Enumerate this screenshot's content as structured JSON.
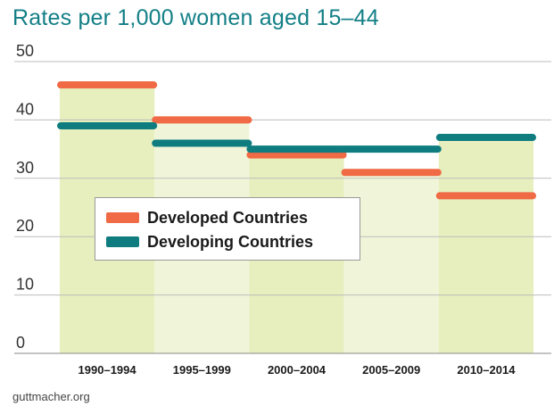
{
  "page": {
    "title": "Rates per 1,000 women aged 15–44",
    "source": "guttmacher.org"
  },
  "colors": {
    "title": "#137f86",
    "developed": "#ef6a45",
    "developing": "#0f7d80",
    "bg_bar_a": "#e6efbd",
    "bg_bar_b": "#f0f5d9",
    "grid": "#bdbdbd"
  },
  "chart_data": {
    "type": "bar",
    "title": "Rates per 1,000 women aged 15–44",
    "categories": [
      "1990–1994",
      "1995–1999",
      "2000–2004",
      "2005–2009",
      "2010–2014"
    ],
    "series": [
      {
        "name": "Developed Countries",
        "values": [
          46,
          40,
          34,
          31,
          27
        ]
      },
      {
        "name": "Developing Countries",
        "values": [
          39,
          36,
          35,
          35,
          37
        ]
      }
    ],
    "background_bar_values": [
      46,
      40,
      34,
      31,
      37
    ],
    "yticks": [
      0,
      10,
      20,
      30,
      40,
      50
    ],
    "ylim": [
      0,
      50
    ],
    "grid": true,
    "legend": {
      "position": "center-left"
    }
  }
}
